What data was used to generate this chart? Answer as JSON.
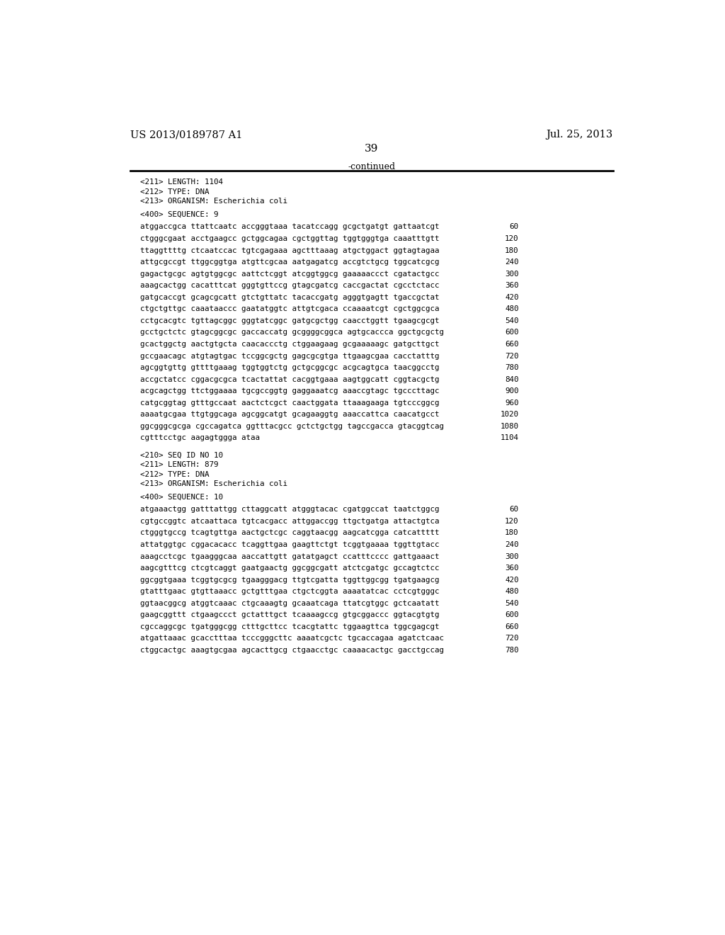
{
  "header_left": "US 2013/0189787 A1",
  "header_right": "Jul. 25, 2013",
  "page_number": "39",
  "continued_label": "-continued",
  "background_color": "#ffffff",
  "text_color": "#000000",
  "seq9_meta": [
    "<211> LENGTH: 1104",
    "<212> TYPE: DNA",
    "<213> ORGANISM: Escherichia coli"
  ],
  "seq9_header": "<400> SEQUENCE: 9",
  "seq9_lines": [
    [
      "atggaccgca ttattcaatc accgggtaaa tacatccagg gcgctgatgt gattaatcgt",
      "60"
    ],
    [
      "ctgggcgaat acctgaagcc gctggcagaa cgctggttag tggtgggtga caaatttgtt",
      "120"
    ],
    [
      "ttaggttttg ctcaatccac tgtcgagaaa agctttaaag atgctggact ggtagtagaa",
      "180"
    ],
    [
      "attgcgccgt ttggcggtga atgttcgcaa aatgagatcg accgtctgcg tggcatcgcg",
      "240"
    ],
    [
      "gagactgcgc agtgtggcgc aattctcggt atcggtggcg gaaaaaccct cgatactgcc",
      "300"
    ],
    [
      "aaagcactgg cacatttcat gggtgttccg gtagcgatcg caccgactat cgcctctacc",
      "360"
    ],
    [
      "gatgcaccgt gcagcgcatt gtctgttatc tacaccgatg agggtgagtt tgaccgctat",
      "420"
    ],
    [
      "ctgctgttgc caaataaccc gaatatggtc attgtcgaca ccaaaatcgt cgctggcgca",
      "480"
    ],
    [
      "cctgcacgtc tgttagcggc gggtatcggc gatgcgctgg caacctggtt tgaagcgcgt",
      "540"
    ],
    [
      "gcctgctctc gtagcggcgc gaccaccatg gcggggcggca agtgcaccca ggctgcgctg",
      "600"
    ],
    [
      "gcactggctg aactgtgcta caacaccctg ctggaagaag gcgaaaaagc gatgcttgct",
      "660"
    ],
    [
      "gccgaacagc atgtagtgac tccggcgctg gagcgcgtga ttgaagcgaa cacctatttg",
      "720"
    ],
    [
      "agcggtgttg gttttgaaag tggtggtctg gctgcggcgc acgcagtgca taacggcctg",
      "780"
    ],
    [
      "accgctatcc cggacgcgca tcactattat cacggtgaaa aagtggcatt cggtacgctg",
      "840"
    ],
    [
      "acgcagctgg ttctggaaaa tgcgccggtg gaggaaatcg aaaccgtagc tgcccttagc",
      "900"
    ],
    [
      "catgcggtag gtttgccaat aactctcgct caactggata ttaaagaaga tgtcccggcg",
      "960"
    ],
    [
      "aaaatgcgaa ttgtggcaga agcggcatgt gcagaaggtg aaaccattca caacatgcct",
      "1020"
    ],
    [
      "ggcgggcgcga cgccagatca ggtttacgcc gctctgctgg tagccgacca gtacggtcag",
      "1080"
    ],
    [
      "cgtttcctgc aagagtggga ataa",
      "1104"
    ]
  ],
  "seq10_meta": [
    "<210> SEQ ID NO 10",
    "<211> LENGTH: 879",
    "<212> TYPE: DNA",
    "<213> ORGANISM: Escherichia coli"
  ],
  "seq10_header": "<400> SEQUENCE: 10",
  "seq10_lines": [
    [
      "atgaaactgg gatttattgg cttaggcatt atgggtacac cgatggccat taatctggcg",
      "60"
    ],
    [
      "cgtgccggtc atcaattaca tgtcacgacc attggaccgg ttgctgatga attactgtca",
      "120"
    ],
    [
      "ctgggtgccg tcagtgttga aactgctcgc caggtaacgg aagcatcgga catcattttt",
      "180"
    ],
    [
      "attatggtgc cggacacacc tcaggttgaa gaagttctgt tcggtgaaaa tggttgtacc",
      "240"
    ],
    [
      "aaagcctcgc tgaagggcaa aaccattgtt gatatgagct ccatttcccc gattgaaact",
      "300"
    ],
    [
      "aagcgtttcg ctcgtcaggt gaatgaactg ggcggcgatt atctcgatgc gccagtctcc",
      "360"
    ],
    [
      "ggcggtgaaa tcggtgcgcg tgaagggacg ttgtcgatta tggttggcgg tgatgaagcg",
      "420"
    ],
    [
      "gtatttgaac gtgttaaacc gctgtttgaa ctgctcggta aaaatatcac cctcgtgggc",
      "480"
    ],
    [
      "ggtaacggcg atggtcaaac ctgcaaagtg gcaaatcaga ttatcgtggc gctcaatatt",
      "540"
    ],
    [
      "gaagcggttt ctgaagccct gctatttgct tcaaaagccg gtgcggaccc ggtacgtgtg",
      "600"
    ],
    [
      "cgccaggcgc tgatgggcgg ctttgcttcc tcacgtattc tggaagttca tggcgagcgt",
      "660"
    ],
    [
      "atgattaaac gcacctttaa tcccgggcttc aaaatcgctc tgcaccagaa agatctcaac",
      "720"
    ],
    [
      "ctggcactgc aaagtgcgaa agcacttgcg ctgaacctgc caaaacactgc gacctgccag",
      "780"
    ]
  ]
}
